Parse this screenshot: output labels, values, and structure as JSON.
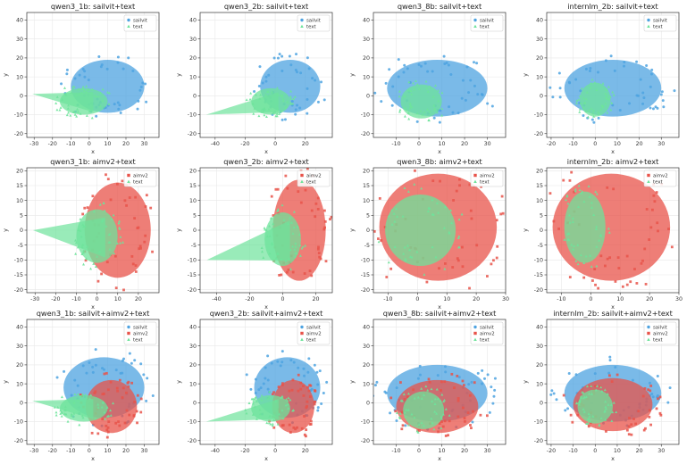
{
  "colors": {
    "sailvit": "#4ea3e0",
    "aimv2": "#e8534a",
    "text": "#6ee39b"
  },
  "chart_data": [
    {
      "type": "scatter",
      "title": "qwen3_1b: sailvit+text",
      "xlabel": "x",
      "ylabel": "y",
      "xlim": [
        -34,
        38
      ],
      "ylim": [
        -22,
        44
      ],
      "xticks": [
        -30,
        -20,
        -10,
        0,
        10,
        20,
        30
      ],
      "yticks": [
        -20,
        -10,
        0,
        10,
        20,
        30,
        40
      ],
      "series": [
        {
          "name": "sailvit",
          "cx": 10,
          "cy": 5,
          "rx": 20,
          "ry": 14
        },
        {
          "name": "text",
          "cx": -3,
          "cy": -3,
          "rx": 13,
          "ry": 7,
          "tail": [
            -31,
            1
          ]
        }
      ]
    },
    {
      "type": "scatter",
      "title": "qwen3_2b: sailvit+text",
      "xlabel": "x",
      "ylabel": "y",
      "xlim": [
        -50,
        38
      ],
      "ylim": [
        -22,
        44
      ],
      "xticks": [
        -40,
        -20,
        0,
        20
      ],
      "yticks": [
        -20,
        -10,
        0,
        10,
        20,
        30,
        40
      ],
      "series": [
        {
          "name": "sailvit",
          "cx": 10,
          "cy": 5,
          "rx": 20,
          "ry": 14
        },
        {
          "name": "text",
          "cx": -3,
          "cy": -3,
          "rx": 13,
          "ry": 7,
          "tail": [
            -46,
            -10
          ]
        }
      ]
    },
    {
      "type": "scatter",
      "title": "qwen3_8b: sailvit+text",
      "xlabel": "x",
      "ylabel": "y",
      "xlim": [
        -20,
        38
      ],
      "ylim": [
        -22,
        44
      ],
      "xticks": [
        -10,
        0,
        10,
        20,
        30
      ],
      "yticks": [
        -20,
        -10,
        0,
        10,
        20,
        30,
        40
      ],
      "series": [
        {
          "name": "sailvit",
          "cx": 8,
          "cy": 4,
          "rx": 22,
          "ry": 15
        },
        {
          "name": "text",
          "cx": 1,
          "cy": -3,
          "rx": 9,
          "ry": 9
        }
      ]
    },
    {
      "type": "scatter",
      "title": "internlm_2b: sailvit+text",
      "xlabel": "x",
      "ylabel": "y",
      "xlim": [
        -22,
        38
      ],
      "ylim": [
        -22,
        44
      ],
      "xticks": [
        -20,
        -10,
        0,
        10,
        20,
        30
      ],
      "yticks": [
        -20,
        -10,
        0,
        10,
        20,
        30,
        40
      ],
      "series": [
        {
          "name": "sailvit",
          "cx": 8,
          "cy": 4,
          "rx": 22,
          "ry": 15
        },
        {
          "name": "text",
          "cx": 0,
          "cy": -2,
          "rx": 7,
          "ry": 9
        }
      ]
    },
    {
      "type": "scatter",
      "title": "qwen3_1b: aimv2+text",
      "xlabel": "x",
      "ylabel": "y",
      "xlim": [
        -34,
        30
      ],
      "ylim": [
        -21,
        21
      ],
      "xticks": [
        -30,
        -20,
        -10,
        0,
        10,
        20
      ],
      "yticks": [
        -20,
        -15,
        -10,
        -5,
        0,
        5,
        10,
        15,
        20
      ],
      "series": [
        {
          "name": "aimv2",
          "cx": 10,
          "cy": 0,
          "rx": 16,
          "ry": 16
        },
        {
          "name": "text",
          "cx": 0,
          "cy": -2,
          "rx": 10,
          "ry": 9,
          "tail": [
            -31,
            0
          ]
        }
      ]
    },
    {
      "type": "scatter",
      "title": "qwen3_2b: aimv2+text",
      "xlabel": "x",
      "ylabel": "y",
      "xlim": [
        -50,
        30
      ],
      "ylim": [
        -21,
        21
      ],
      "xticks": [
        -40,
        -20,
        0,
        20
      ],
      "yticks": [
        -20,
        -15,
        -10,
        -5,
        0,
        5,
        10,
        15,
        20
      ],
      "series": [
        {
          "name": "aimv2",
          "cx": 10,
          "cy": 0,
          "rx": 16,
          "ry": 17
        },
        {
          "name": "text",
          "cx": 0,
          "cy": -3,
          "rx": 11,
          "ry": 9,
          "tail": [
            -46,
            -10
          ]
        }
      ]
    },
    {
      "type": "scatter",
      "title": "qwen3_8b: aimv2+text",
      "xlabel": "x",
      "ylabel": "y",
      "xlim": [
        -15,
        30
      ],
      "ylim": [
        -21,
        21
      ],
      "xticks": [
        -10,
        0,
        10,
        20,
        30
      ],
      "yticks": [
        -20,
        -15,
        -10,
        -5,
        0,
        5,
        10,
        15,
        20
      ],
      "series": [
        {
          "name": "aimv2",
          "cx": 7,
          "cy": 1,
          "rx": 20,
          "ry": 18
        },
        {
          "name": "text",
          "cx": 1,
          "cy": 0,
          "rx": 12,
          "ry": 12
        }
      ]
    },
    {
      "type": "scatter",
      "title": "internlm_2b: aimv2+text",
      "xlabel": "x",
      "ylabel": "y",
      "xlim": [
        -15,
        30
      ],
      "ylim": [
        -21,
        21
      ],
      "xticks": [
        -10,
        0,
        10,
        20,
        30
      ],
      "yticks": [
        -20,
        -15,
        -10,
        -5,
        0,
        5,
        10,
        15,
        20
      ],
      "series": [
        {
          "name": "aimv2",
          "cx": 7,
          "cy": 1,
          "rx": 20,
          "ry": 18
        },
        {
          "name": "text",
          "cx": -2,
          "cy": 1,
          "rx": 7,
          "ry": 12
        }
      ]
    },
    {
      "type": "scatter",
      "title": "qwen3_1b: sailvit+aimv2+text",
      "xlabel": "x",
      "ylabel": "y",
      "xlim": [
        -34,
        38
      ],
      "ylim": [
        -22,
        44
      ],
      "xticks": [
        -30,
        -20,
        -10,
        0,
        10,
        20,
        30
      ],
      "yticks": [
        -20,
        -10,
        0,
        10,
        20,
        30,
        40
      ],
      "series": [
        {
          "name": "sailvit",
          "cx": 8,
          "cy": 8,
          "rx": 22,
          "ry": 16
        },
        {
          "name": "aimv2",
          "cx": 12,
          "cy": -2,
          "rx": 14,
          "ry": 14
        },
        {
          "name": "text",
          "cx": -3,
          "cy": -3,
          "rx": 13,
          "ry": 7,
          "tail": [
            -31,
            1
          ]
        }
      ]
    },
    {
      "type": "scatter",
      "title": "qwen3_2b: sailvit+aimv2+text",
      "xlabel": "x",
      "ylabel": "y",
      "xlim": [
        -50,
        38
      ],
      "ylim": [
        -22,
        44
      ],
      "xticks": [
        -40,
        -20,
        0,
        20
      ],
      "yticks": [
        -20,
        -10,
        0,
        10,
        20,
        30,
        40
      ],
      "series": [
        {
          "name": "sailvit",
          "cx": 8,
          "cy": 8,
          "rx": 22,
          "ry": 16
        },
        {
          "name": "aimv2",
          "cx": 12,
          "cy": -2,
          "rx": 14,
          "ry": 14
        },
        {
          "name": "text",
          "cx": -3,
          "cy": -3,
          "rx": 13,
          "ry": 7,
          "tail": [
            -46,
            -10
          ]
        }
      ]
    },
    {
      "type": "scatter",
      "title": "qwen3_8b: sailvit+aimv2+text",
      "xlabel": "x",
      "ylabel": "y",
      "xlim": [
        -20,
        38
      ],
      "ylim": [
        -22,
        44
      ],
      "xticks": [
        -10,
        0,
        10,
        20,
        30
      ],
      "yticks": [
        -20,
        -10,
        0,
        10,
        20,
        30,
        40
      ],
      "series": [
        {
          "name": "sailvit",
          "cx": 8,
          "cy": 5,
          "rx": 22,
          "ry": 15
        },
        {
          "name": "aimv2",
          "cx": 8,
          "cy": -2,
          "rx": 18,
          "ry": 14
        },
        {
          "name": "text",
          "cx": 2,
          "cy": -4,
          "rx": 9,
          "ry": 10
        }
      ]
    },
    {
      "type": "scatter",
      "title": "internlm_2b: sailvit+aimv2+text",
      "xlabel": "x",
      "ylabel": "y",
      "xlim": [
        -22,
        38
      ],
      "ylim": [
        -22,
        44
      ],
      "xticks": [
        -20,
        -10,
        0,
        10,
        20,
        30
      ],
      "yticks": [
        -20,
        -10,
        0,
        10,
        20,
        30,
        40
      ],
      "series": [
        {
          "name": "sailvit",
          "cx": 8,
          "cy": 5,
          "rx": 22,
          "ry": 15
        },
        {
          "name": "aimv2",
          "cx": 8,
          "cy": -1,
          "rx": 18,
          "ry": 14
        },
        {
          "name": "text",
          "cx": 0,
          "cy": -2,
          "rx": 8,
          "ry": 9
        }
      ]
    }
  ]
}
